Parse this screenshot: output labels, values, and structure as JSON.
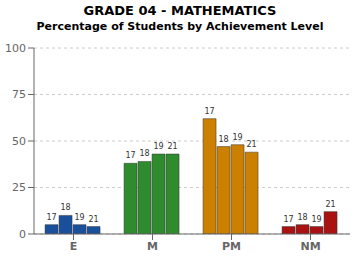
{
  "chart_data": {
    "type": "bar",
    "title": "GRADE 04 - MATHEMATICS",
    "subtitle": "Percentage of Students by Achievement Level",
    "categories": [
      "E",
      "M",
      "PM",
      "NM"
    ],
    "series": [
      {
        "name": "17",
        "values": [
          5,
          38,
          62,
          4
        ],
        "colors": [
          "#1a4f9c",
          "#2e8b2e",
          "#cc8000",
          "#aa1111"
        ]
      },
      {
        "name": "18",
        "values": [
          10,
          39,
          47,
          5
        ],
        "colors": [
          "#1a4f9c",
          "#2e8b2e",
          "#cc8000",
          "#aa1111"
        ]
      },
      {
        "name": "19",
        "values": [
          5,
          43,
          48,
          4
        ],
        "colors": [
          "#1a4f9c",
          "#2e8b2e",
          "#cc8000",
          "#aa1111"
        ]
      },
      {
        "name": "21",
        "values": [
          4,
          43,
          44,
          12
        ],
        "colors": [
          "#1a4f9c",
          "#2e8b2e",
          "#cc8000",
          "#aa1111"
        ]
      }
    ],
    "ylim": [
      0,
      100
    ],
    "yticks": [
      0,
      25,
      50,
      75,
      100
    ],
    "grid": true
  }
}
